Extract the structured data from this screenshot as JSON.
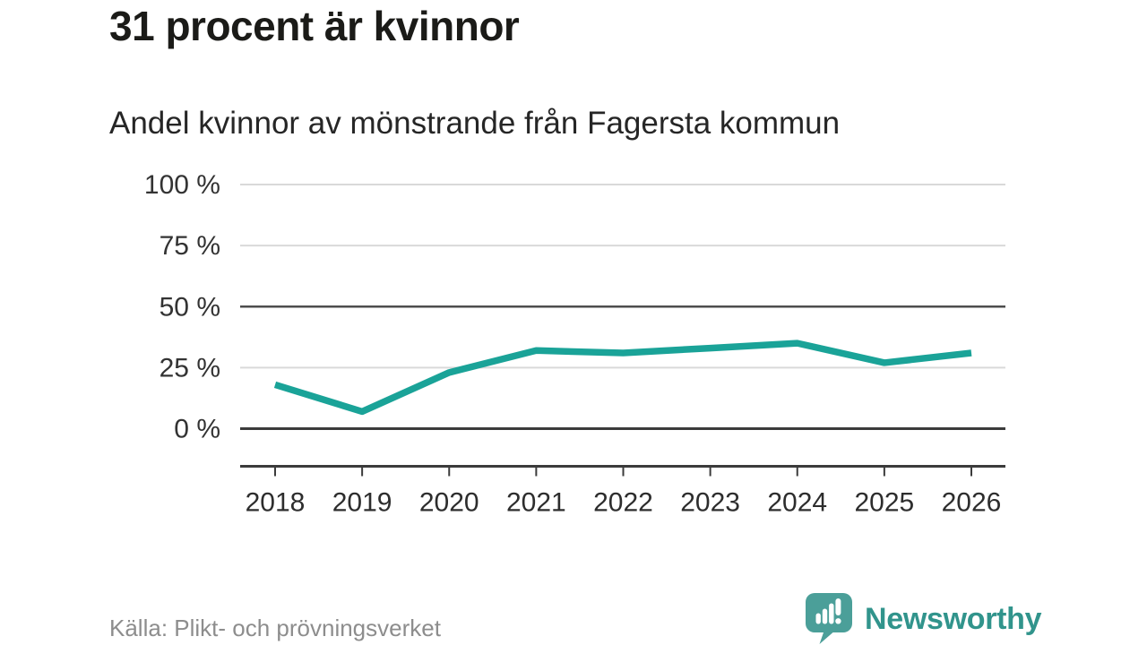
{
  "header": {
    "title": "31 procent är kvinnor",
    "subtitle": "Andel kvinnor av mönstrande från Fagersta kommun"
  },
  "footer": {
    "source": "Källa: Plikt- och prövningsverket",
    "brand": "Newsworthy"
  },
  "colors": {
    "line": "#1aa398",
    "grid_light": "#d9d9d9",
    "grid_dark": "#4d4d4d",
    "axis": "#3b3b3b",
    "y_label": "#333333",
    "x_label": "#2d2d2d",
    "logo_bubble": "#4b9f99",
    "logo_marks": "#ffffff",
    "brand_text": "#31948c"
  },
  "chart_data": {
    "type": "line",
    "title": "31 procent är kvinnor",
    "subtitle": "Andel kvinnor av mönstrande från Fagersta kommun",
    "x": [
      "2018",
      "2019",
      "2020",
      "2021",
      "2022",
      "2023",
      "2024",
      "2025",
      "2026"
    ],
    "series": [
      {
        "name": "Andel kvinnor av mönstrande",
        "values": [
          18,
          7,
          23,
          32,
          31,
          33,
          35,
          27,
          31
        ]
      }
    ],
    "unit": "%",
    "ylim": [
      0,
      100
    ],
    "yticks": [
      {
        "value": 100,
        "label": "100 %"
      },
      {
        "value": 75,
        "label": "75 %"
      },
      {
        "value": 50,
        "label": "50 %"
      },
      {
        "value": 25,
        "label": "25 %"
      },
      {
        "value": 0,
        "label": "0 %"
      }
    ],
    "emphasized_yticks": [
      50,
      0
    ],
    "grid": "horizontal",
    "legend": "none",
    "source": "Källa: Plikt- och prövningsverket"
  }
}
